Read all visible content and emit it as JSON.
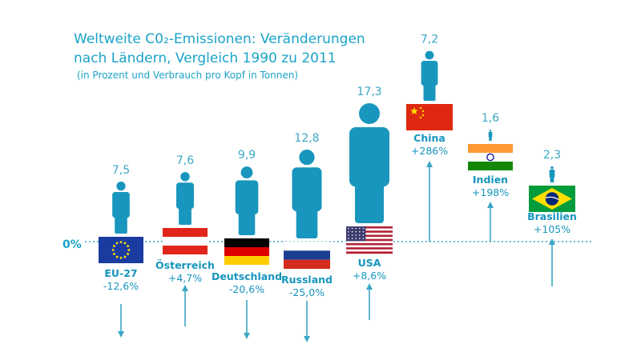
{
  "title_line1": "Weltweite C0₂-Emissionen: Veränderungen",
  "title_line2": "nach Ländern, Vergleich 1990 zu 2011",
  "subtitle": "(in Prozent und Verbrauch pro Kopf in Tonnen)",
  "zero_label": "0%",
  "colors": {
    "accent": "#1aa3c8",
    "person": "#1996bd",
    "axis": "#3aa7c4"
  },
  "chart_data": {
    "type": "bar",
    "categories": [
      "EU-27",
      "Österreich",
      "Deutschland",
      "Russland",
      "USA",
      "China",
      "Indien",
      "Brasilien"
    ],
    "series": [
      {
        "name": "Veränderung 1990–2011",
        "values": [
          -12.6,
          4.7,
          -20.6,
          -25.0,
          8.6,
          286,
          198,
          105
        ],
        "unit": "%"
      },
      {
        "name": "Verbrauch pro Kopf",
        "values": [
          7.5,
          7.6,
          9.9,
          12.8,
          17.3,
          7.2,
          1.6,
          2.3
        ],
        "unit": "t"
      }
    ],
    "change_labels": [
      "-12,6%",
      "+4,7%",
      "-20,6%",
      "-25,0%",
      "+8,6%",
      "+286%",
      "+198%",
      "+105%"
    ],
    "per_capita_labels": [
      "7,5",
      "7,6",
      "9,9",
      "12,8",
      "17,3",
      "7,2",
      "1,6",
      "2,3"
    ],
    "flags": [
      "eu-flag",
      "austria-flag",
      "germany-flag",
      "russia-flag",
      "usa-flag",
      "china-flag",
      "india-flag",
      "brazil-flag"
    ]
  }
}
